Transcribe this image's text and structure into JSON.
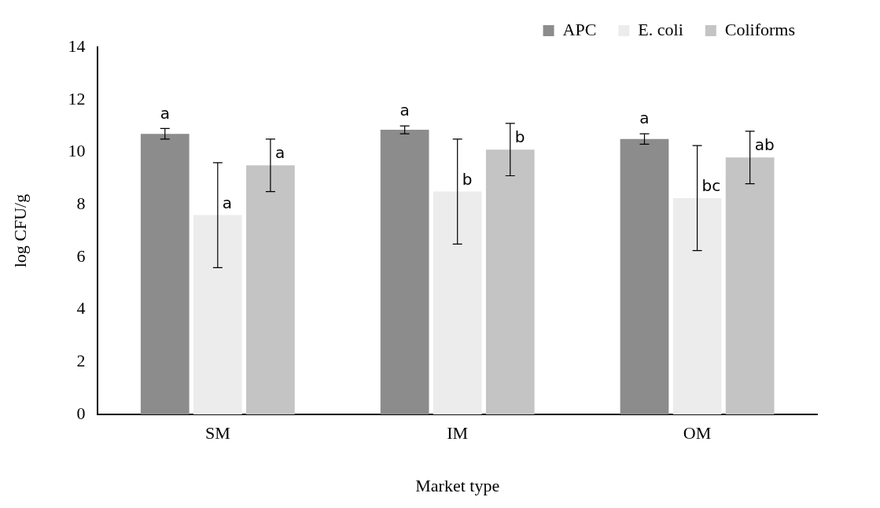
{
  "chart_data": {
    "type": "bar",
    "xlabel": "Market type",
    "ylabel": "log CFU/g",
    "categories": [
      "SM",
      "IM",
      "OM"
    ],
    "series": [
      {
        "name": "APC",
        "color": "#8c8c8c",
        "values": [
          10.7,
          10.85,
          10.5
        ],
        "errors": [
          0.2,
          0.15,
          0.2
        ],
        "value_labels": [
          "a",
          "a",
          "a"
        ]
      },
      {
        "name": "E. coli",
        "color": "#ececec",
        "values": [
          7.6,
          8.5,
          8.25
        ],
        "errors": [
          2.0,
          2.0,
          2.0
        ],
        "value_labels": [
          "a",
          "b",
          "bc"
        ]
      },
      {
        "name": "Coliforms",
        "color": "#c4c4c4",
        "values": [
          9.5,
          10.1,
          9.8
        ],
        "errors": [
          1.0,
          1.0,
          1.0
        ],
        "value_labels": [
          "a",
          "b",
          "ab"
        ]
      }
    ],
    "ylim": [
      0,
      14
    ],
    "yticks": [
      0,
      2,
      4,
      6,
      8,
      10,
      12,
      14
    ],
    "grid": false,
    "legend": "top right"
  }
}
